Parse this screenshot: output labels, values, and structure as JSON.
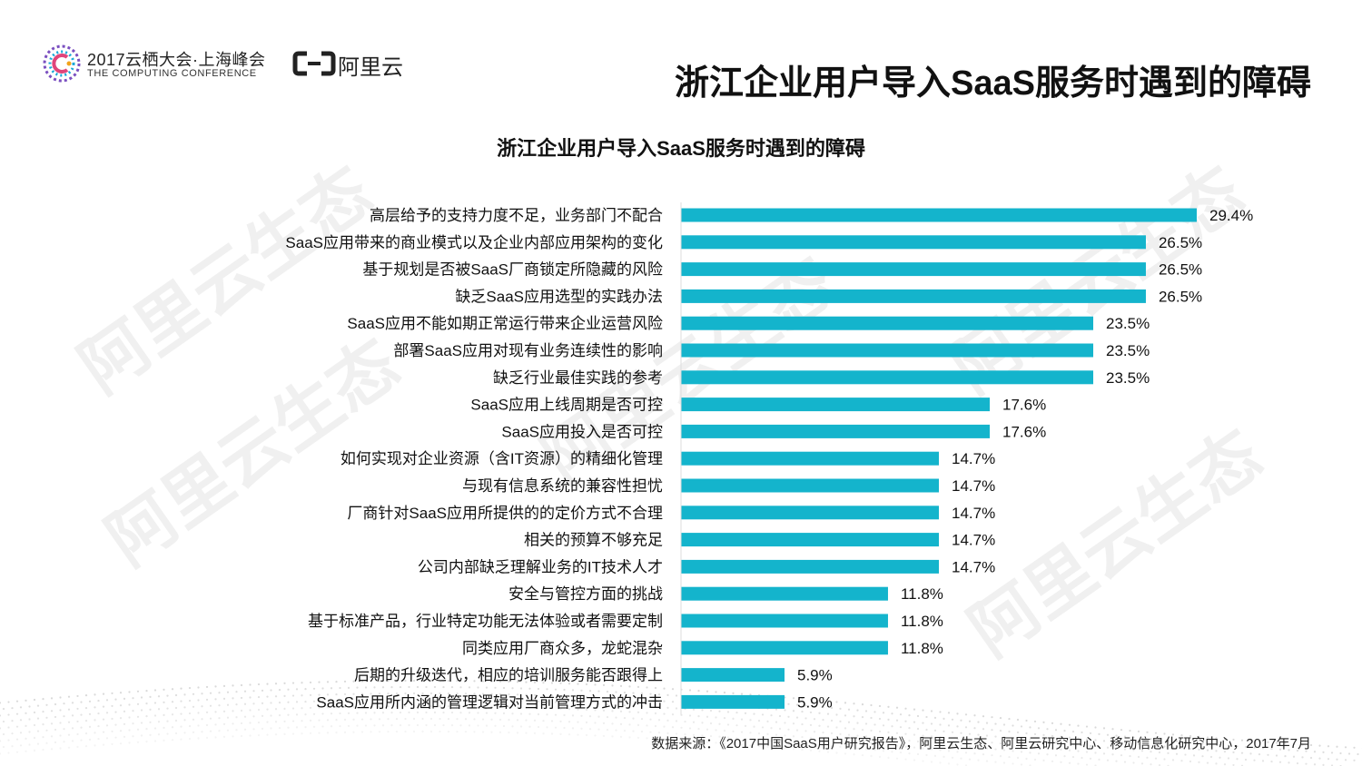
{
  "header": {
    "conference_title": "2017云栖大会·上海峰会",
    "conference_subtitle": "THE COMPUTING CONFERENCE",
    "brand_name": "阿里云",
    "page_title": "浙江企业用户导入SaaS服务时遇到的障碍"
  },
  "watermark_text": "阿里云生态",
  "chart_data": {
    "type": "bar",
    "orientation": "horizontal",
    "title": "浙江企业用户导入SaaS服务时遇到的障碍",
    "xlabel": "",
    "ylabel": "",
    "xlim": [
      0,
      30
    ],
    "grid": false,
    "bar_color": "#14b4cc",
    "categories": [
      "高层给予的支持力度不足，业务部门不配合",
      "SaaS应用带来的商业模式以及企业内部应用架构的变化",
      "基于规划是否被SaaS厂商锁定所隐藏的风险",
      "缺乏SaaS应用选型的实践办法",
      "SaaS应用不能如期正常运行带来企业运营风险",
      "部署SaaS应用对现有业务连续性的影响",
      "缺乏行业最佳实践的参考",
      "SaaS应用上线周期是否可控",
      "SaaS应用投入是否可控",
      "如何实现对企业资源（含IT资源）的精细化管理",
      "与现有信息系统的兼容性担忧",
      "厂商针对SaaS应用所提供的的定价方式不合理",
      "相关的预算不够充足",
      "公司内部缺乏理解业务的IT技术人才",
      "安全与管控方面的挑战",
      "基于标准产品，行业特定功能无法体验或者需要定制",
      "同类应用厂商众多，龙蛇混杂",
      "后期的升级迭代，相应的培训服务能否跟得上",
      "SaaS应用所内涵的管理逻辑对当前管理方式的冲击"
    ],
    "values": [
      29.4,
      26.5,
      26.5,
      26.5,
      23.5,
      23.5,
      23.5,
      17.6,
      17.6,
      14.7,
      14.7,
      14.7,
      14.7,
      14.7,
      11.8,
      11.8,
      11.8,
      5.9,
      5.9
    ],
    "value_labels": [
      "29.4%",
      "26.5%",
      "26.5%",
      "26.5%",
      "23.5%",
      "23.5%",
      "23.5%",
      "17.6%",
      "17.6%",
      "14.7%",
      "14.7%",
      "14.7%",
      "14.7%",
      "14.7%",
      "11.8%",
      "11.8%",
      "11.8%",
      "5.9%",
      "5.9%"
    ]
  },
  "footer": {
    "source": "数据来源：《2017中国SaaS用户研究报告》，阿里云生态、阿里云研究中心、移动信息化研究中心，2017年7月"
  }
}
